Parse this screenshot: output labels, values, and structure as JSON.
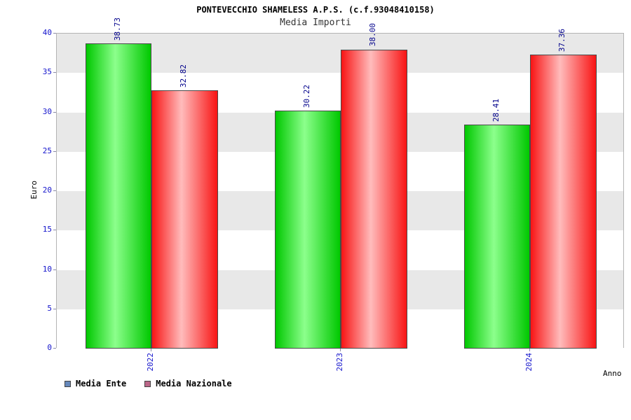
{
  "chart_data": {
    "type": "bar",
    "title": "PONTEVECCHIO SHAMELESS A.P.S. (c.f.93048410158)",
    "subtitle": "Media Importi",
    "categories": [
      "2022",
      "2023",
      "2024"
    ],
    "series": [
      {
        "name": "Media Ente",
        "values": [
          38.73,
          30.22,
          28.41
        ],
        "bar_color": "#00c800",
        "bar_highlight": "#8cff8c",
        "legend_color": "#6688bb"
      },
      {
        "name": "Media Nazionale",
        "values": [
          32.82,
          38.0,
          37.36
        ],
        "bar_color": "#f81414",
        "bar_highlight": "#ffbcbc",
        "legend_color": "#bb6688"
      }
    ],
    "xlabel": "Anno",
    "ylabel": "Euro",
    "ylim": [
      0,
      40
    ],
    "ytick_step": 5,
    "yticks": [
      0,
      5,
      10,
      15,
      20,
      25,
      30,
      35,
      40
    ],
    "grid": "alternating-horizontal-bands",
    "legend_position": "bottom-left",
    "colors": {
      "tick_label": "#1414cc",
      "value_label": "#00008b",
      "band_gray": "#e8e8e8",
      "band_white": "#ffffff",
      "background": "#ffffff"
    }
  }
}
